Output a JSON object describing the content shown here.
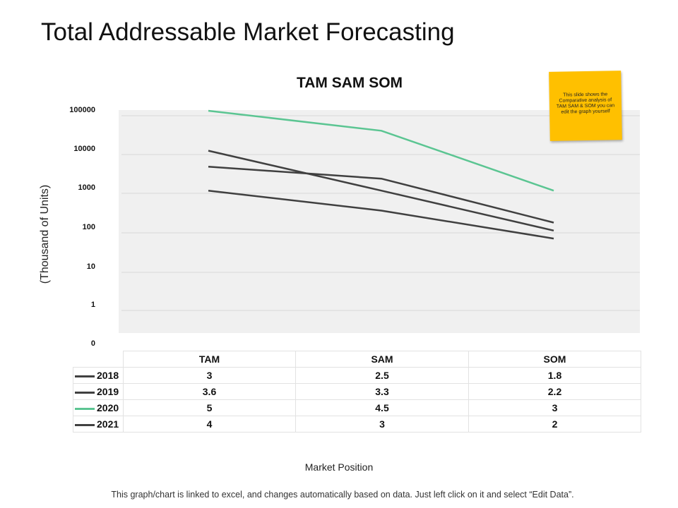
{
  "page": {
    "title": "Total Addressable Market Forecasting",
    "sticky_note": "This slide shows the Comparative analysis of TAM SAM & SOM you can edit the graph yourself",
    "footer": "This graph/chart is linked to excel, and changes automatically based on data. Just left click on it and select “Edit Data”."
  },
  "chart_data": {
    "type": "line",
    "title": "TAM SAM SOM",
    "ylabel": "(Thousand of Units)",
    "xlabel": "Market Position",
    "yscale": "log",
    "categories": [
      "TAM",
      "SAM",
      "SOM"
    ],
    "ytick_labels": [
      "0",
      "1",
      "10",
      "100",
      "1000",
      "10000",
      "100000"
    ],
    "series": [
      {
        "name": "2018",
        "values": [
          3,
          2.5,
          1.8
        ],
        "color": "#404040"
      },
      {
        "name": "2019",
        "values": [
          3.6,
          3.3,
          2.2
        ],
        "color": "#404040"
      },
      {
        "name": "2020",
        "values": [
          5,
          4.5,
          3
        ],
        "color": "#5bc592"
      },
      {
        "name": "2021",
        "values": [
          4,
          3,
          2
        ],
        "color": "#404040"
      }
    ],
    "grid": true,
    "legend": "table-left"
  }
}
